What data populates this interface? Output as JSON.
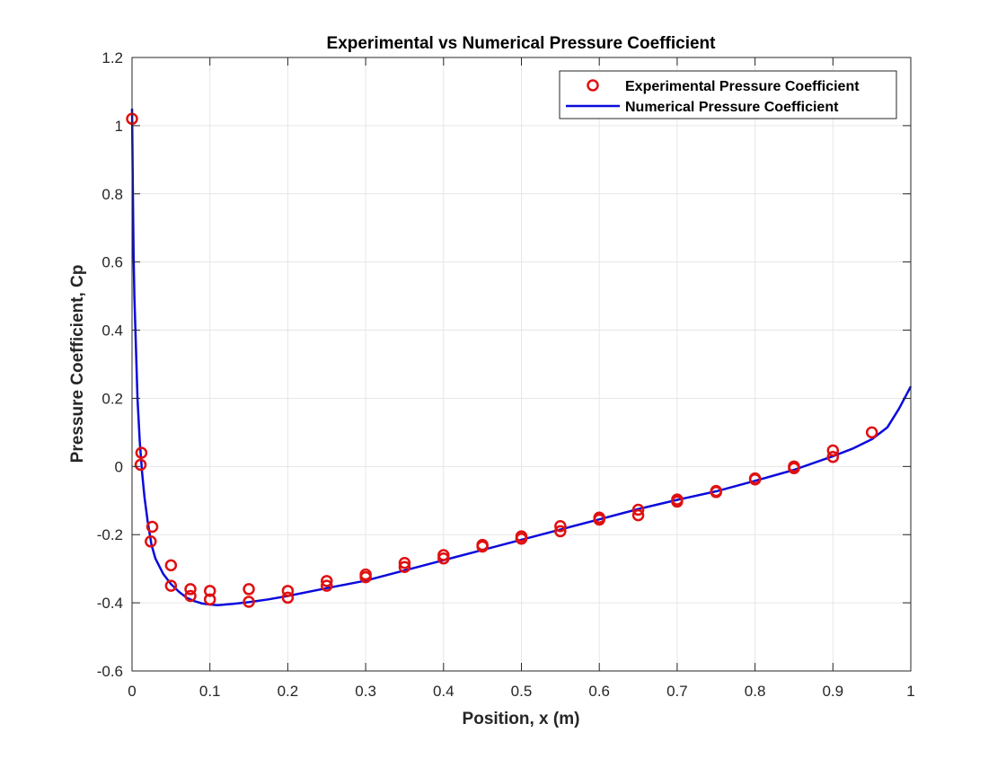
{
  "chart_data": {
    "type": "line",
    "title": "Experimental vs Numerical Pressure Coefficient",
    "xlabel": "Position, x (m)",
    "ylabel": "Pressure Coefficient, Cp",
    "xlim": [
      0,
      1
    ],
    "ylim": [
      -0.6,
      1.2
    ],
    "xticks": [
      "0",
      "0.1",
      "0.2",
      "0.3",
      "0.4",
      "0.5",
      "0.6",
      "0.7",
      "0.8",
      "0.9",
      "1"
    ],
    "yticks": [
      "-0.6",
      "-0.4",
      "-0.2",
      "0",
      "0.2",
      "0.4",
      "0.6",
      "0.8",
      "1",
      "1.2"
    ],
    "grid": true,
    "legend_position": "top-right",
    "series": [
      {
        "name": "Experimental Pressure Coefficient",
        "kind": "scatter",
        "marker": "circle",
        "color": "#e01010",
        "points": [
          [
            0.0,
            1.02
          ],
          [
            0.011,
            0.005
          ],
          [
            0.012,
            0.04
          ],
          [
            0.024,
            -0.22
          ],
          [
            0.026,
            -0.177
          ],
          [
            0.05,
            -0.29
          ],
          [
            0.05,
            -0.35
          ],
          [
            0.075,
            -0.36
          ],
          [
            0.075,
            -0.38
          ],
          [
            0.1,
            -0.365
          ],
          [
            0.1,
            -0.39
          ],
          [
            0.15,
            -0.36
          ],
          [
            0.15,
            -0.397
          ],
          [
            0.2,
            -0.365
          ],
          [
            0.2,
            -0.385
          ],
          [
            0.25,
            -0.336
          ],
          [
            0.25,
            -0.35
          ],
          [
            0.3,
            -0.317
          ],
          [
            0.3,
            -0.325
          ],
          [
            0.35,
            -0.283
          ],
          [
            0.35,
            -0.295
          ],
          [
            0.4,
            -0.26
          ],
          [
            0.4,
            -0.27
          ],
          [
            0.45,
            -0.23
          ],
          [
            0.45,
            -0.235
          ],
          [
            0.5,
            -0.205
          ],
          [
            0.5,
            -0.212
          ],
          [
            0.55,
            -0.175
          ],
          [
            0.55,
            -0.19
          ],
          [
            0.6,
            -0.15
          ],
          [
            0.6,
            -0.156
          ],
          [
            0.65,
            -0.127
          ],
          [
            0.65,
            -0.143
          ],
          [
            0.7,
            -0.097
          ],
          [
            0.7,
            -0.103
          ],
          [
            0.75,
            -0.072
          ],
          [
            0.75,
            -0.075
          ],
          [
            0.8,
            -0.035
          ],
          [
            0.8,
            -0.038
          ],
          [
            0.85,
            0.0
          ],
          [
            0.85,
            -0.005
          ],
          [
            0.9,
            0.047
          ],
          [
            0.9,
            0.028
          ],
          [
            0.95,
            0.1
          ]
        ]
      },
      {
        "name": "Numerical Pressure Coefficient",
        "kind": "line",
        "color": "#0a0adc",
        "points": [
          [
            0.0,
            1.05
          ],
          [
            0.001,
            0.82
          ],
          [
            0.002,
            0.62
          ],
          [
            0.003,
            0.5
          ],
          [
            0.005,
            0.35
          ],
          [
            0.007,
            0.2
          ],
          [
            0.01,
            0.07
          ],
          [
            0.013,
            -0.02
          ],
          [
            0.016,
            -0.09
          ],
          [
            0.02,
            -0.16
          ],
          [
            0.025,
            -0.23
          ],
          [
            0.03,
            -0.27
          ],
          [
            0.04,
            -0.315
          ],
          [
            0.05,
            -0.345
          ],
          [
            0.06,
            -0.367
          ],
          [
            0.07,
            -0.385
          ],
          [
            0.08,
            -0.395
          ],
          [
            0.09,
            -0.402
          ],
          [
            0.1,
            -0.405
          ],
          [
            0.11,
            -0.407
          ],
          [
            0.12,
            -0.405
          ],
          [
            0.13,
            -0.403
          ],
          [
            0.15,
            -0.398
          ],
          [
            0.175,
            -0.39
          ],
          [
            0.2,
            -0.38
          ],
          [
            0.25,
            -0.357
          ],
          [
            0.3,
            -0.335
          ],
          [
            0.35,
            -0.305
          ],
          [
            0.4,
            -0.275
          ],
          [
            0.45,
            -0.245
          ],
          [
            0.5,
            -0.215
          ],
          [
            0.55,
            -0.185
          ],
          [
            0.6,
            -0.155
          ],
          [
            0.65,
            -0.125
          ],
          [
            0.7,
            -0.098
          ],
          [
            0.75,
            -0.073
          ],
          [
            0.8,
            -0.042
          ],
          [
            0.85,
            -0.01
          ],
          [
            0.9,
            0.03
          ],
          [
            0.925,
            0.052
          ],
          [
            0.95,
            0.08
          ],
          [
            0.97,
            0.115
          ],
          [
            0.985,
            0.17
          ],
          [
            1.0,
            0.235
          ]
        ]
      }
    ]
  }
}
